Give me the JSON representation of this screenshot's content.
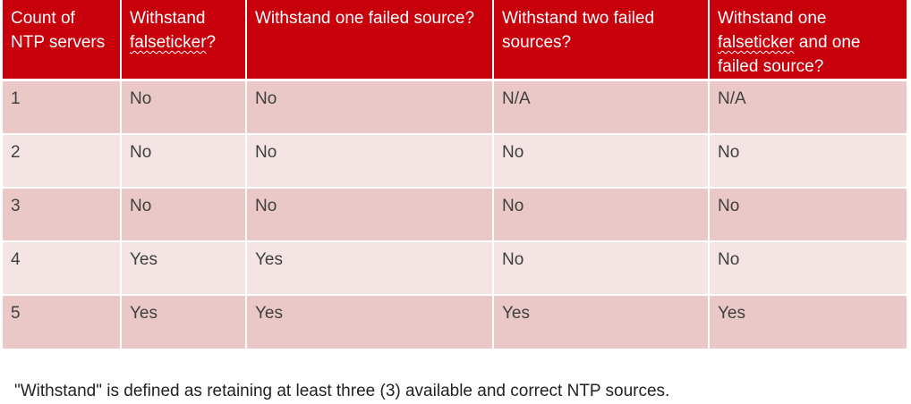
{
  "table": {
    "headers": {
      "count": "Count of NTP servers",
      "falseticker_a": "Withstand ",
      "falseticker_b": "falseticker",
      "falseticker_c": "?",
      "one_failed": "Withstand one failed source?",
      "two_failed": "Withstand two failed sources?",
      "combo_a": "Withstand one ",
      "combo_b": "falseticker",
      "combo_c": " and one failed source?"
    },
    "rows": [
      [
        "1",
        "No",
        "No",
        "N/A",
        "N/A"
      ],
      [
        "2",
        "No",
        "No",
        "No",
        "No"
      ],
      [
        "3",
        "No",
        "No",
        "No",
        "No"
      ],
      [
        "4",
        "Yes",
        "Yes",
        "No",
        "No"
      ],
      [
        "5",
        "Yes",
        "Yes",
        "Yes",
        "Yes"
      ]
    ]
  },
  "footnote": "\"Withstand\" is defined as retaining at least three (3) available and correct NTP sources.",
  "colors": {
    "header_bg": "#c8000b",
    "row_odd": "#ebc8c8",
    "row_even": "#f5e4e4"
  }
}
